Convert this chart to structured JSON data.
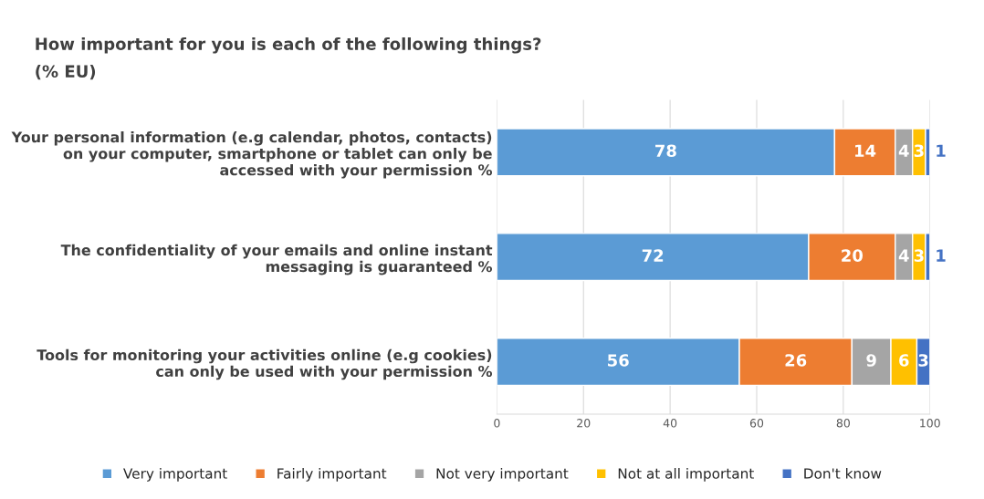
{
  "chart_data": {
    "type": "bar",
    "orientation": "horizontal",
    "stacked": true,
    "title": "How important for you is each of the following things?",
    "subtitle": "(% EU)",
    "categories": [
      "Your personal information (e.g calendar, photos, contacts)\non your computer, smartphone or tablet can only be\naccessed with your permission %",
      "The confidentiality of your emails and online instant\nmessaging is guaranteed %",
      "Tools for monitoring your activities online (e.g cookies)\ncan only be used with your permission %"
    ],
    "series": [
      {
        "name": "Very important",
        "color": "#5b9bd5",
        "values": [
          78,
          72,
          56
        ]
      },
      {
        "name": "Fairly important",
        "color": "#ed7d31",
        "values": [
          14,
          20,
          26
        ]
      },
      {
        "name": "Not very important",
        "color": "#a5a5a5",
        "values": [
          4,
          4,
          9
        ]
      },
      {
        "name": "Not at all important",
        "color": "#ffc000",
        "values": [
          3,
          3,
          6
        ]
      },
      {
        "name": "Don't know",
        "color": "#4472c4",
        "values": [
          1,
          1,
          3
        ]
      }
    ],
    "xlim": [
      0,
      100
    ],
    "xticks": [
      0,
      20,
      40,
      60,
      80,
      100
    ],
    "grid": "x",
    "legend": "bottom",
    "data_labels": true
  }
}
